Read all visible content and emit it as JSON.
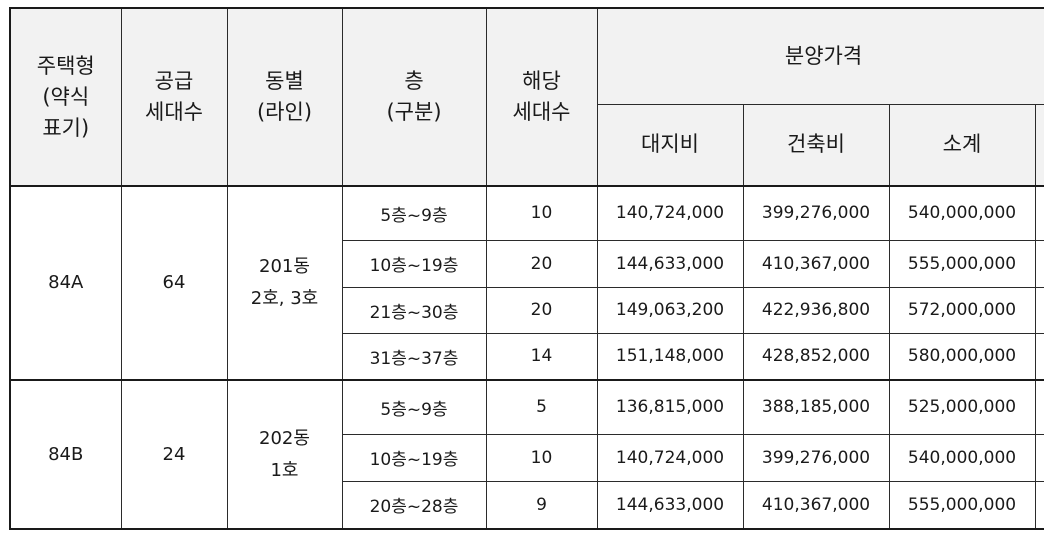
{
  "headers": {
    "type": "주택형\n(약식\n표기)",
    "supply": "공급\n세대수",
    "building": "동별\n(라인)",
    "floor": "층\n(구분)",
    "units": "해당\n세대수",
    "price": "분양가격",
    "land": "대지비",
    "construction": "건축비",
    "subtotal": "소계"
  },
  "groups": [
    {
      "type": "84A",
      "supply": "64",
      "building": "201동\n2호, 3호",
      "rows": [
        {
          "floor": "5층~9층",
          "units": "10",
          "land": "140,724,000",
          "construction": "399,276,000",
          "subtotal": "540,000,000"
        },
        {
          "floor": "10층~19층",
          "units": "20",
          "land": "144,633,000",
          "construction": "410,367,000",
          "subtotal": "555,000,000"
        },
        {
          "floor": "21층~30층",
          "units": "20",
          "land": "149,063,200",
          "construction": "422,936,800",
          "subtotal": "572,000,000"
        },
        {
          "floor": "31층~37층",
          "units": "14",
          "land": "151,148,000",
          "construction": "428,852,000",
          "subtotal": "580,000,000"
        }
      ]
    },
    {
      "type": "84B",
      "supply": "24",
      "building": "202동\n1호",
      "rows": [
        {
          "floor": "5층~9층",
          "units": "5",
          "land": "136,815,000",
          "construction": "388,185,000",
          "subtotal": "525,000,000"
        },
        {
          "floor": "10층~19층",
          "units": "10",
          "land": "140,724,000",
          "construction": "399,276,000",
          "subtotal": "540,000,000"
        },
        {
          "floor": "20층~28층",
          "units": "9",
          "land": "144,633,000",
          "construction": "410,367,000",
          "subtotal": "555,000,000"
        }
      ]
    }
  ]
}
